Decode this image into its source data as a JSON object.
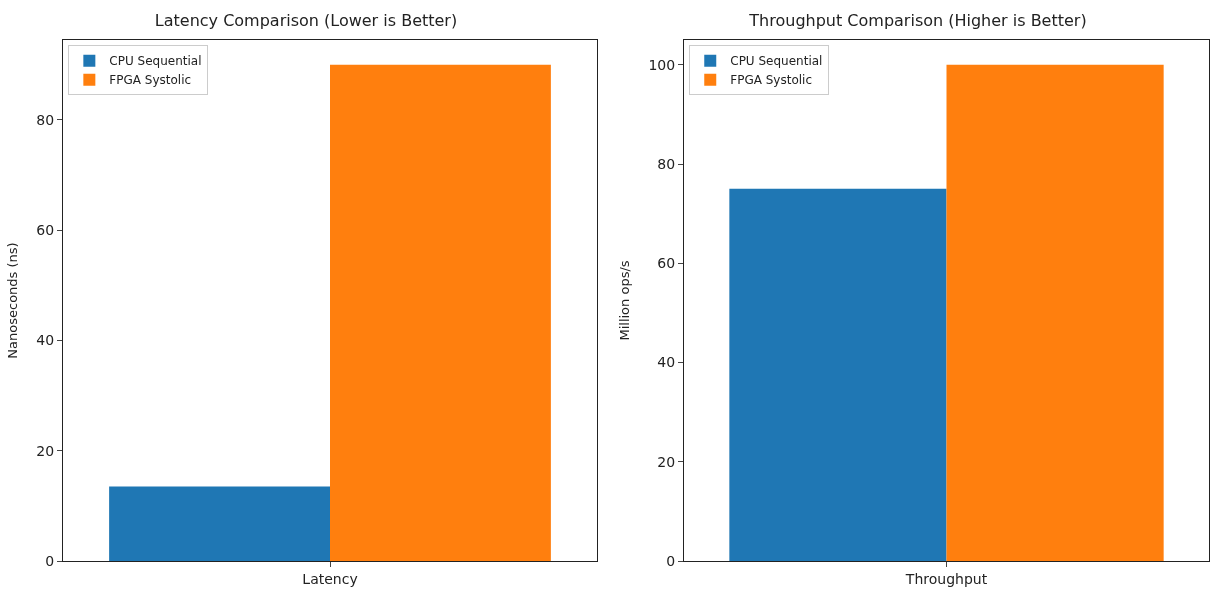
{
  "chart_data": [
    {
      "type": "bar",
      "title": "Latency Comparison (Lower is Better)",
      "ylabel": "Nanoseconds (ns)",
      "categories": [
        "Latency"
      ],
      "series": [
        {
          "name": "CPU Sequential",
          "color": "#1f77b4",
          "values": [
            13.5
          ]
        },
        {
          "name": "FPGA Systolic",
          "color": "#ff7f0e",
          "values": [
            90
          ]
        }
      ],
      "ylim": [
        0,
        94.5
      ],
      "yticks": [
        0,
        20,
        40,
        60,
        80
      ],
      "legend": "top left"
    },
    {
      "type": "bar",
      "title": "Throughput Comparison (Higher is Better)",
      "ylabel": "Million ops/s",
      "categories": [
        "Throughput"
      ],
      "series": [
        {
          "name": "CPU Sequential",
          "color": "#1f77b4",
          "values": [
            75
          ]
        },
        {
          "name": "FPGA Systolic",
          "color": "#ff7f0e",
          "values": [
            100
          ]
        }
      ],
      "ylim": [
        0,
        105
      ],
      "yticks": [
        0,
        20,
        40,
        60,
        80,
        100
      ],
      "legend": "top left"
    }
  ]
}
